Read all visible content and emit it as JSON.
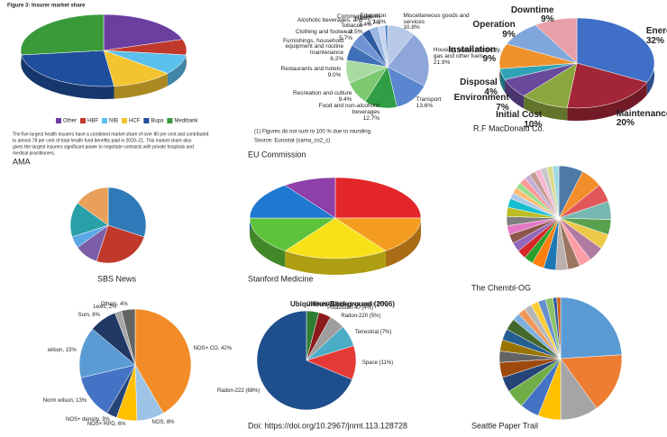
{
  "chart_data": [
    {
      "type": "pie",
      "style": "3d",
      "title": "Figure 3: Insurer market share",
      "categories": [
        "Other",
        "HBF",
        "NIB",
        "HCF",
        "Bupa",
        "Medibank"
      ],
      "values": [
        20,
        7,
        9,
        12,
        25,
        27
      ],
      "colors": [
        "#6a3fa0",
        "#c0392b",
        "#5bc0eb",
        "#f4c430",
        "#1f4e9c",
        "#3a9a3a"
      ],
      "legend": "bottom",
      "note_lines": [
        "The five largest health insurers have a combined market share of over 80 per cent and contributed",
        "to almost 78 per cent of total health fund benefits paid in 2020–21. This market share also",
        "gives the largest insurers significant power to negotiate contracts with private hospitals and",
        "medical practitioners."
      ],
      "caption": "AMA"
    },
    {
      "type": "pie",
      "categories": [
        "Miscellaneous goods and services",
        "Housing, water, electricity, gas and other fuels",
        "Transport",
        "Food and non-alcoholic beverages",
        "Recreation and culture",
        "Restaurants and hotels",
        "Furnishings, household equipment and routine maintenance",
        "Clothing and footwear",
        "Alcoholic beverages, and tobacco",
        "Health",
        "Communications",
        "Education"
      ],
      "values": [
        10.8,
        21.9,
        13.6,
        12.7,
        9.4,
        9.0,
        6.2,
        5.7,
        3.5,
        3.4,
        2.7,
        1.0
      ],
      "value_labels": [
        "10.8%",
        "21.9%",
        "13.6%",
        "12.7%",
        "9.4%",
        "9.0%",
        "6.2%",
        "5.7%",
        "3.5%",
        "3.4%",
        "2.7%",
        "1.0%"
      ],
      "colors": [
        "#b9c9e8",
        "#8ea6d9",
        "#5a86cf",
        "#2f9e44",
        "#7cc96f",
        "#a8dba0",
        "#3f6fb5",
        "#6f93d4",
        "#2d5aa0",
        "#9bb7e4",
        "#c6d4ef",
        "#4a7cc4"
      ],
      "footnotes": [
        "(1) Figures do not sum to 100 % due to rounding.",
        "Source: Eurostat (sama_co2_c)"
      ],
      "caption": "EU Commission"
    },
    {
      "type": "pie",
      "style": "3d",
      "categories": [
        "Energy",
        "Maintenance & Repair",
        "Initial Cost",
        "Environment",
        "Disposal",
        "Installation",
        "Operation",
        "Downtime"
      ],
      "values": [
        32,
        20,
        10,
        7,
        4,
        9,
        9,
        9
      ],
      "value_labels": [
        "32%",
        "20%",
        "10%",
        "7%",
        "4%",
        "9%",
        "9%",
        "9%"
      ],
      "colors": [
        "#3f6fc6",
        "#a32638",
        "#8aa63c",
        "#6a4a9c",
        "#2fa3b5",
        "#f0922b",
        "#7fa7dc",
        "#e8a0a8"
      ],
      "caption": "R.F MacDonald Co."
    },
    {
      "type": "pie",
      "values": [
        30,
        25,
        10,
        5,
        15,
        15
      ],
      "colors": [
        "#2f7ab8",
        "#c0392b",
        "#7b5ea7",
        "#5aa9e6",
        "#2aa0a8",
        "#e8a05a"
      ],
      "caption": "SBS News"
    },
    {
      "type": "pie",
      "style": "3d",
      "values": [
        25,
        15,
        20,
        15,
        15,
        10
      ],
      "colors": [
        "#e3262a",
        "#f39c1f",
        "#f7e21a",
        "#5ec23a",
        "#1f78d1",
        "#8e3fa8"
      ],
      "caption": "Stanford Medicine"
    },
    {
      "type": "pie",
      "values": [
        8,
        7,
        6,
        6,
        5,
        5,
        5,
        4,
        4,
        4,
        4,
        4,
        3,
        3,
        3,
        3,
        3,
        3,
        3,
        3,
        2,
        2,
        2,
        2,
        2,
        2,
        2,
        2,
        2,
        2
      ],
      "colors": [
        "#4e79a7",
        "#f28e2b",
        "#e15759",
        "#76b7b2",
        "#59a14f",
        "#edc948",
        "#b07aa1",
        "#ff9da7",
        "#9c755f",
        "#bab0ac",
        "#1f77b4",
        "#ff7f0e",
        "#2ca02c",
        "#d62728",
        "#9467bd",
        "#8c564b",
        "#e377c2",
        "#7f7f7f",
        "#bcbd22",
        "#17becf",
        "#aec7e8",
        "#ffbb78",
        "#98df8a",
        "#ff9896",
        "#c5b0d5",
        "#c49c94",
        "#f7b6d2",
        "#c7c7c7",
        "#dbdb8d",
        "#9edae5"
      ],
      "caption": "The Chembl-OG"
    },
    {
      "type": "pie",
      "values": [
        42,
        8,
        6,
        3,
        13,
        15,
        8,
        2,
        4
      ],
      "value_labels": [
        "NOS+ CO, 42%",
        "NOS, 8%",
        "NOS+ RPD, 6%",
        "NOS+ density, 3%",
        "Norm wilson, 13%",
        "wilson, 15%",
        "Sum, 8%",
        "Lexis, 2%",
        "Others, 4%"
      ],
      "colors": [
        "#f28c28",
        "#9dc3e6",
        "#ffc000",
        "#264478",
        "#4472c4",
        "#5b9bd5",
        "#1f3864",
        "#a5a5a5",
        "#636363"
      ]
    },
    {
      "type": "pie",
      "title": "Ubiquitous Background (2006)",
      "values": [
        0.01,
        4,
        4,
        5,
        7,
        11,
        68
      ],
      "value_labels": [
        "Other (<0.01%)",
        "Thorium & uranium series (4%)",
        "Potassium-40 (4%)",
        "Radon-220 (5%)",
        "Terrestrial (7%)",
        "Space (11%)",
        "Radon-222 (68%)"
      ],
      "colors": [
        "#cccccc",
        "#2e7d32",
        "#8b1a1a",
        "#9e9e9e",
        "#4bacc6",
        "#e53935",
        "#1f4e8c"
      ],
      "caption": "Doi: https://doi.org/10.2967/jnmt.113.128728"
    },
    {
      "type": "pie",
      "values": [
        24,
        16,
        10,
        6,
        5,
        5,
        4,
        4,
        3,
        3,
        3,
        3,
        2,
        2,
        2,
        2,
        2,
        2,
        1,
        1
      ],
      "colors": [
        "#5b9bd5",
        "#ed7d31",
        "#a5a5a5",
        "#ffc000",
        "#4472c4",
        "#70ad47",
        "#264478",
        "#9e480e",
        "#636363",
        "#997300",
        "#255e91",
        "#43682b",
        "#7cafdd",
        "#f1975a",
        "#b7b7b7",
        "#ffcd33",
        "#698ed0",
        "#8cc168",
        "#335aa1",
        "#d26012"
      ],
      "caption": "Seattle Paper Trail"
    }
  ]
}
